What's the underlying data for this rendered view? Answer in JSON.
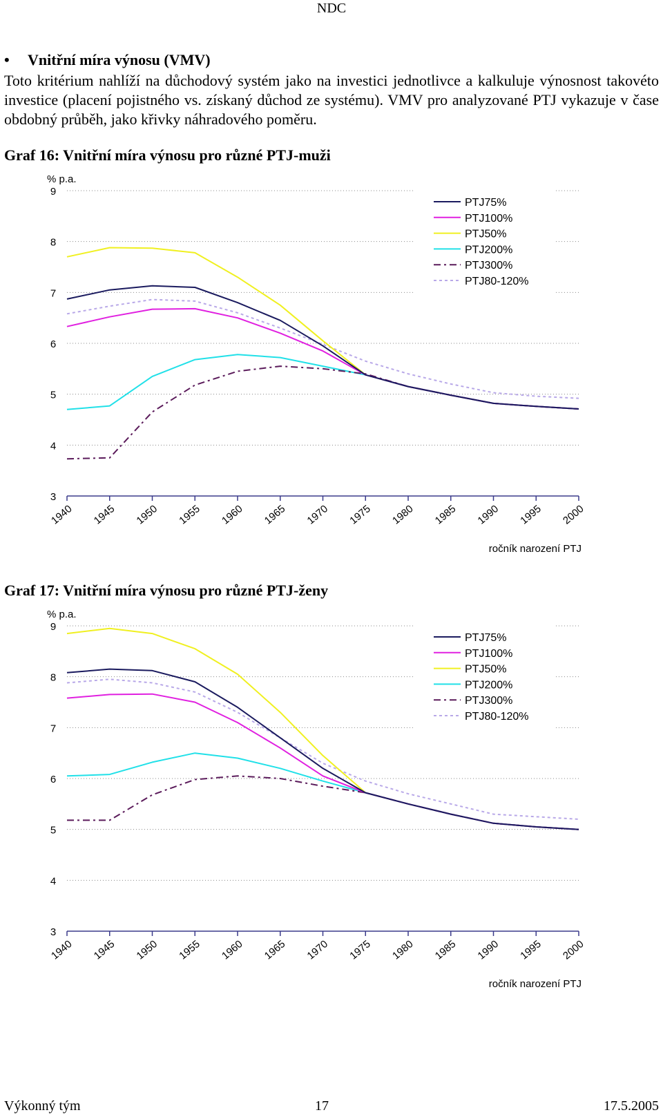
{
  "header": {
    "title": "NDC"
  },
  "section": {
    "heading": "Vnitřní míra výnosu (VMV)",
    "paragraph": "Toto kritérium nahlíží na důchodový systém jako na investici jednotlivce a kalkuluje výnosnost takovéto investice (placení pojistného vs. získaný důchod ze systému). VMV pro analyzované PTJ vykazuje v čase obdobný průběh, jako křivky náhradového poměru."
  },
  "graphs": [
    {
      "caption": "Graf 16: Vnitřní míra výnosu pro různé PTJ-muži"
    },
    {
      "caption": "Graf 17: Vnitřní míra výnosu pro různé PTJ-ženy"
    }
  ],
  "colors": {
    "PTJ75%": "#1a1a5e",
    "PTJ100%": "#e020e0",
    "PTJ50%": "#f0f020",
    "PTJ200%": "#20e0e8",
    "PTJ300%": "#5a1a5a",
    "PTJ80-120%": "#b8a8e8",
    "axis": "#3a3a8a",
    "grid": "#888888"
  },
  "chart_data": [
    {
      "type": "line",
      "title": "Graf 16: Vnitřní míra výnosu pro různé PTJ-muži",
      "ylabel": "% p.a.",
      "xlabel": "ročník narození PTJ",
      "ylim": [
        3,
        9
      ],
      "xlim": [
        1940,
        2000
      ],
      "yticks": [
        "3",
        "4",
        "5",
        "6",
        "7",
        "8",
        "9"
      ],
      "xticks": [
        "1940",
        "1945",
        "1950",
        "1955",
        "1960",
        "1965",
        "1970",
        "1975",
        "1980",
        "1985",
        "1990",
        "1995",
        "2000"
      ],
      "x": [
        1940,
        1945,
        1950,
        1955,
        1960,
        1965,
        1970,
        1975,
        1980,
        1985,
        1990,
        1995,
        2000
      ],
      "series": [
        {
          "name": "PTJ75%",
          "values": [
            6.87,
            7.05,
            7.13,
            7.1,
            6.8,
            6.45,
            5.95,
            5.38,
            5.15,
            4.98,
            4.82,
            4.76,
            4.71
          ]
        },
        {
          "name": "PTJ100%",
          "values": [
            6.33,
            6.52,
            6.67,
            6.68,
            6.5,
            6.2,
            5.85,
            5.38,
            5.15,
            4.98,
            4.82,
            4.76,
            4.71
          ]
        },
        {
          "name": "PTJ50%",
          "values": [
            7.7,
            7.88,
            7.87,
            7.78,
            7.3,
            6.75,
            6.05,
            5.38,
            5.15,
            4.98,
            4.82,
            4.76,
            4.71
          ]
        },
        {
          "name": "PTJ200%",
          "values": [
            4.7,
            4.77,
            5.35,
            5.68,
            5.78,
            5.72,
            5.55,
            5.38,
            5.15,
            4.98,
            4.82,
            4.76,
            4.71
          ]
        },
        {
          "name": "PTJ300%",
          "values": [
            3.73,
            3.75,
            4.65,
            5.18,
            5.45,
            5.55,
            5.5,
            5.4,
            5.15,
            4.98,
            4.82,
            4.76,
            4.71
          ]
        },
        {
          "name": "PTJ80-120%",
          "values": [
            6.58,
            6.73,
            6.86,
            6.83,
            6.6,
            6.3,
            5.98,
            5.65,
            5.4,
            5.2,
            5.03,
            4.96,
            4.92
          ]
        }
      ],
      "legend": "top-right"
    },
    {
      "type": "line",
      "title": "Graf 17: Vnitřní míra výnosu pro různé PTJ-ženy",
      "ylabel": "% p.a.",
      "xlabel": "ročník narození PTJ",
      "ylim": [
        3,
        9
      ],
      "xlim": [
        1940,
        2000
      ],
      "yticks": [
        "3",
        "4",
        "5",
        "6",
        "7",
        "8",
        "9"
      ],
      "xticks": [
        "1940",
        "1945",
        "1950",
        "1955",
        "1960",
        "1965",
        "1970",
        "1975",
        "1980",
        "1985",
        "1990",
        "1995",
        "2000"
      ],
      "x": [
        1940,
        1945,
        1950,
        1955,
        1960,
        1965,
        1970,
        1975,
        1980,
        1985,
        1990,
        1995,
        2000
      ],
      "series": [
        {
          "name": "PTJ75%",
          "values": [
            8.08,
            8.15,
            8.12,
            7.9,
            7.4,
            6.8,
            6.2,
            5.72,
            5.5,
            5.3,
            5.12,
            5.05,
            5.0
          ]
        },
        {
          "name": "PTJ100%",
          "values": [
            7.58,
            7.65,
            7.66,
            7.5,
            7.1,
            6.6,
            6.05,
            5.72,
            5.5,
            5.3,
            5.12,
            5.05,
            5.0
          ]
        },
        {
          "name": "PTJ50%",
          "values": [
            8.85,
            8.95,
            8.85,
            8.55,
            8.05,
            7.3,
            6.45,
            5.72,
            5.5,
            5.3,
            5.12,
            5.05,
            5.0
          ]
        },
        {
          "name": "PTJ200%",
          "values": [
            6.05,
            6.08,
            6.32,
            6.5,
            6.4,
            6.2,
            5.95,
            5.72,
            5.5,
            5.3,
            5.12,
            5.05,
            5.0
          ]
        },
        {
          "name": "PTJ300%",
          "values": [
            5.18,
            5.18,
            5.68,
            5.98,
            6.05,
            6.0,
            5.85,
            5.72,
            5.5,
            5.3,
            5.12,
            5.05,
            5.0
          ]
        },
        {
          "name": "PTJ80-120%",
          "values": [
            7.88,
            7.95,
            7.88,
            7.7,
            7.3,
            6.8,
            6.3,
            5.95,
            5.7,
            5.5,
            5.3,
            5.25,
            5.2
          ]
        }
      ],
      "legend": "top-right"
    }
  ],
  "footer": {
    "left": "Výkonný tým",
    "center": "17",
    "right": "17.5.2005"
  }
}
